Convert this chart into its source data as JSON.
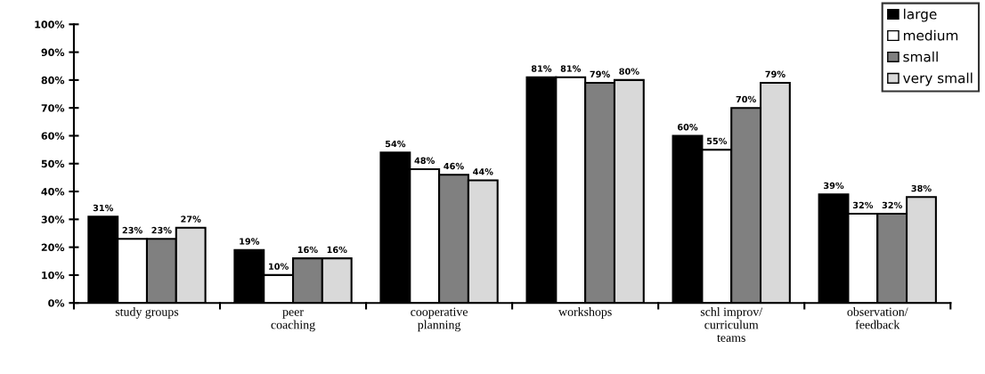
{
  "chart_data": {
    "type": "bar",
    "categories": [
      "study groups",
      "peer\ncoaching",
      "cooperative\nplanning",
      "workshops",
      "schl improv/\ncurriculum\nteams",
      "observation/\nfeedback"
    ],
    "series": [
      {
        "name": "large",
        "color": "#000000",
        "values": [
          31,
          19,
          54,
          81,
          60,
          39
        ],
        "value_labels": [
          "31%",
          "19%",
          "54%",
          "81%",
          "60%",
          "39%"
        ]
      },
      {
        "name": "medium",
        "color": "#ffffff",
        "values": [
          23,
          10,
          48,
          81,
          55,
          32
        ],
        "value_labels": [
          "23%",
          "10%",
          "48%",
          "81%",
          "55%",
          "32%"
        ]
      },
      {
        "name": "small",
        "color": "#808080",
        "values": [
          23,
          16,
          46,
          79,
          70,
          32
        ],
        "value_labels": [
          "23%",
          "16%",
          "46%",
          "79%",
          "70%",
          "32%"
        ]
      },
      {
        "name": "very small",
        "color": "#d9d9d9",
        "values": [
          27,
          16,
          44,
          80,
          79,
          38
        ],
        "value_labels": [
          "27%",
          "16%",
          "44%",
          "80%",
          "79%",
          "38%"
        ]
      }
    ],
    "ylim": [
      0,
      100
    ],
    "yticks": [
      {
        "value": 0,
        "label": "0%"
      },
      {
        "value": 10,
        "label": "10%"
      },
      {
        "value": 20,
        "label": "20%"
      },
      {
        "value": 30,
        "label": "30%"
      },
      {
        "value": 40,
        "label": "40%"
      },
      {
        "value": 50,
        "label": "50%"
      },
      {
        "value": 60,
        "label": "60%"
      },
      {
        "value": 70,
        "label": "70%"
      },
      {
        "value": 80,
        "label": "80%"
      },
      {
        "value": 90,
        "label": "90%"
      },
      {
        "value": 100,
        "label": "100%"
      }
    ],
    "grid": false,
    "legend": "top right"
  }
}
